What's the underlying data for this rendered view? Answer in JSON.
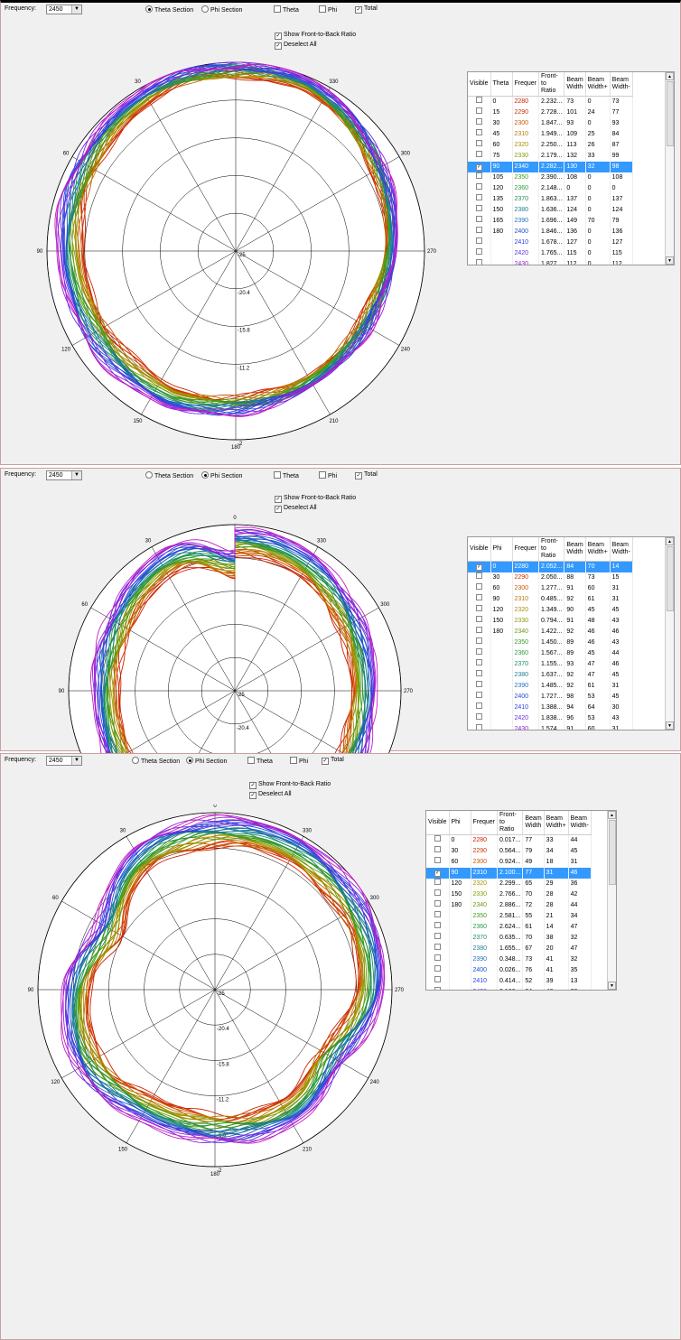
{
  "controls": {
    "frequency_label": "Frequency:",
    "frequency_value": "2450",
    "theta_section": "Theta Section",
    "phi_section": "Phi Section",
    "theta": "Theta",
    "phi": "Phi",
    "total": "Total",
    "show_ftb": "Show Front-to-Back Ratio",
    "deselect_all": "Deselect All"
  },
  "colors": {
    "panel_bg": "#f0f0f0",
    "selection": "#3399ff",
    "border_red": "#c9a0a0"
  },
  "icons": {
    "dropdown": "dropdown-arrow-icon",
    "scroll_up": "scroll-up-icon",
    "scroll_down": "scroll-down-icon"
  },
  "panels": [
    {
      "section": "theta",
      "columns": [
        "Visible",
        "Theta",
        "Frequer",
        "Front-to\nRatio",
        "Beam\nWidth",
        "Beam\nWidth+",
        "Beam\nWidth-"
      ],
      "rows": [
        [
          "",
          "0",
          "2280",
          "2.232...",
          "73",
          "0",
          "73"
        ],
        [
          "",
          "15",
          "2290",
          "2.728...",
          "101",
          "24",
          "77"
        ],
        [
          "",
          "30",
          "2300",
          "1.847...",
          "93",
          "0",
          "93"
        ],
        [
          "",
          "45",
          "2310",
          "1.949...",
          "109",
          "25",
          "84"
        ],
        [
          "",
          "60",
          "2320",
          "2.250...",
          "113",
          "26",
          "87"
        ],
        [
          "",
          "75",
          "2330",
          "2.179...",
          "132",
          "33",
          "99"
        ],
        [
          "✓",
          "90",
          "2340",
          "2.282...",
          "130",
          "32",
          "98"
        ],
        [
          "",
          "105",
          "2350",
          "2.390...",
          "108",
          "0",
          "108"
        ],
        [
          "",
          "120",
          "2360",
          "2.148...",
          "0",
          "0",
          "0"
        ],
        [
          "",
          "135",
          "2370",
          "1.863...",
          "137",
          "0",
          "137"
        ],
        [
          "",
          "150",
          "2380",
          "1.636...",
          "124",
          "0",
          "124"
        ],
        [
          "",
          "165",
          "2390",
          "1.696...",
          "149",
          "70",
          "79"
        ],
        [
          "",
          "180",
          "2400",
          "1.846...",
          "136",
          "0",
          "136"
        ],
        [
          "",
          "",
          "2410",
          "1.678...",
          "127",
          "0",
          "127"
        ],
        [
          "",
          "",
          "2420",
          "1.765...",
          "115",
          "0",
          "115"
        ],
        [
          "",
          "",
          "2430",
          "1.827...",
          "112",
          "0",
          "112"
        ]
      ],
      "selected_row": 6
    },
    {
      "section": "phi",
      "columns": [
        "Visible",
        "Phi",
        "Frequer",
        "Front-to\nRatio",
        "Beam\nWidth",
        "Beam\nWidth+",
        "Beam\nWidth-"
      ],
      "rows": [
        [
          "✓",
          "0",
          "2280",
          "2.052...",
          "84",
          "70",
          "14"
        ],
        [
          "",
          "30",
          "2290",
          "2.050...",
          "88",
          "73",
          "15"
        ],
        [
          "",
          "60",
          "2300",
          "1.277...",
          "91",
          "60",
          "31"
        ],
        [
          "",
          "90",
          "2310",
          "0.485...",
          "92",
          "61",
          "31"
        ],
        [
          "",
          "120",
          "2320",
          "1.349...",
          "90",
          "45",
          "45"
        ],
        [
          "",
          "150",
          "2330",
          "0.794...",
          "91",
          "48",
          "43"
        ],
        [
          "",
          "180",
          "2340",
          "1.422...",
          "92",
          "46",
          "46"
        ],
        [
          "",
          "",
          "2350",
          "1.450...",
          "89",
          "46",
          "43"
        ],
        [
          "",
          "",
          "2360",
          "1.567...",
          "89",
          "45",
          "44"
        ],
        [
          "",
          "",
          "2370",
          "1.155...",
          "93",
          "47",
          "46"
        ],
        [
          "",
          "",
          "2380",
          "1.637...",
          "92",
          "47",
          "45"
        ],
        [
          "",
          "",
          "2390",
          "1.485...",
          "92",
          "61",
          "31"
        ],
        [
          "",
          "",
          "2400",
          "1.727...",
          "98",
          "53",
          "45"
        ],
        [
          "",
          "",
          "2410",
          "1.388...",
          "94",
          "64",
          "30"
        ],
        [
          "",
          "",
          "2420",
          "1.838...",
          "96",
          "53",
          "43"
        ],
        [
          "",
          "",
          "2430",
          "1.574...",
          "91",
          "60",
          "31"
        ]
      ],
      "selected_row": 0
    },
    {
      "section": "phi",
      "columns": [
        "Visible",
        "Phi",
        "Frequer",
        "Front-to\nRatio",
        "Beam\nWidth",
        "Beam\nWidth+",
        "Beam\nWidth-"
      ],
      "rows": [
        [
          "",
          "0",
          "2280",
          "0.017...",
          "77",
          "33",
          "44"
        ],
        [
          "",
          "30",
          "2290",
          "0.564...",
          "79",
          "34",
          "45"
        ],
        [
          "",
          "60",
          "2300",
          "0.924...",
          "49",
          "18",
          "31"
        ],
        [
          "✓",
          "90",
          "2310",
          "2.100...",
          "77",
          "31",
          "46"
        ],
        [
          "",
          "120",
          "2320",
          "2.299...",
          "65",
          "29",
          "36"
        ],
        [
          "",
          "150",
          "2330",
          "2.766...",
          "70",
          "28",
          "42"
        ],
        [
          "",
          "180",
          "2340",
          "2.886...",
          "72",
          "28",
          "44"
        ],
        [
          "",
          "",
          "2350",
          "2.581...",
          "55",
          "21",
          "34"
        ],
        [
          "",
          "",
          "2360",
          "2.624...",
          "61",
          "14",
          "47"
        ],
        [
          "",
          "",
          "2370",
          "0.635...",
          "70",
          "38",
          "32"
        ],
        [
          "",
          "",
          "2380",
          "1.655...",
          "67",
          "20",
          "47"
        ],
        [
          "",
          "",
          "2390",
          "0.348...",
          "73",
          "41",
          "32"
        ],
        [
          "",
          "",
          "2400",
          "0.026...",
          "76",
          "41",
          "35"
        ],
        [
          "",
          "",
          "2410",
          "0.414...",
          "52",
          "39",
          "13"
        ],
        [
          "",
          "",
          "2420",
          "0.166...",
          "84",
          "46",
          "38"
        ],
        [
          "",
          "",
          "2430",
          "0.271...",
          "85",
          "47",
          "38"
        ]
      ],
      "selected_row": 3
    }
  ],
  "freq_colors": [
    "#cc2200",
    "#cc3300",
    "#cc5500",
    "#b87a00",
    "#a89000",
    "#8a9a00",
    "#6a9a10",
    "#3a9a20",
    "#2a9a40",
    "#1a8f60",
    "#1a7f90",
    "#2070c0",
    "#2050d0",
    "#3040e0",
    "#6030e0",
    "#9020e0",
    "#c020c0",
    "#d02090"
  ],
  "chart_data": [
    {
      "type": "polar-line",
      "angle_labels": [
        "0",
        "30",
        "60",
        "90",
        "120",
        "150",
        "180",
        "210",
        "240",
        "270",
        "300",
        "330"
      ],
      "radial_labels": [
        "-25",
        "-20.4",
        "-15.8",
        "-11.2",
        "-6.6",
        "-2"
      ],
      "rlim": [
        -25,
        -2
      ],
      "grid": true,
      "series_count": 17,
      "traces": [
        {
          "r_base": -4.6,
          "lobe": "theta-smooth"
        },
        {
          "r_base": -3.2,
          "lobe": "theta-smooth"
        }
      ]
    },
    {
      "type": "polar-line",
      "angle_labels": [
        "0",
        "30",
        "60",
        "90",
        "120",
        "150",
        "180",
        "210",
        "240",
        "270",
        "300",
        "330"
      ],
      "radial_labels": [
        "-25",
        "-20.4",
        "-15.8",
        "-11.2",
        "-6.6",
        "-2"
      ],
      "rlim": [
        -25,
        -2
      ],
      "grid": true,
      "series_count": 17,
      "traces": [
        {
          "r_base": -7.5,
          "lobe": "phi-bilobe"
        },
        {
          "r_base": -4.0,
          "lobe": "phi-bilobe"
        }
      ]
    },
    {
      "type": "polar-line",
      "angle_labels": [
        "0",
        "30",
        "60",
        "90",
        "120",
        "150",
        "180",
        "210",
        "240",
        "270",
        "300",
        "330"
      ],
      "radial_labels": [
        "-25",
        "-20.4",
        "-15.8",
        "-11.2",
        "-6.6",
        "-2"
      ],
      "rlim": [
        -25,
        -2
      ],
      "grid": true,
      "series_count": 17,
      "traces": [
        {
          "r_base": -7.5,
          "lobe": "phi-skew"
        },
        {
          "r_base": -4.0,
          "lobe": "phi-skew"
        }
      ]
    }
  ]
}
